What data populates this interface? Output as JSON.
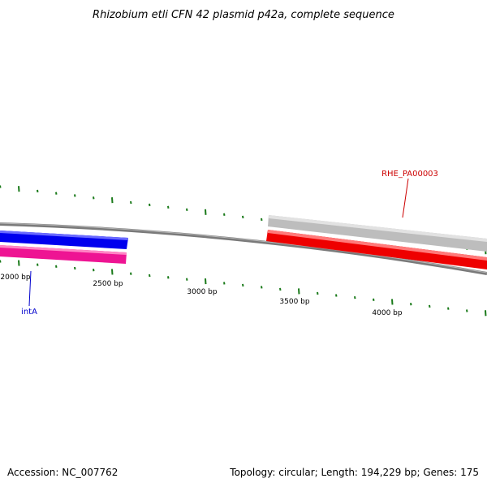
{
  "title": "Rhizobium etli CFN 42 plasmid p42a, complete sequence",
  "footer": {
    "accession": "Accession: NC_007762",
    "summary": "Topology: circular; Length: 194,229 bp; Genes: 175"
  },
  "tick_labels": [
    "2000 bp",
    "2500 bp",
    "3000 bp",
    "3500 bp",
    "4000 bp"
  ],
  "genes": [
    {
      "label": "intA",
      "color": "#0000cc"
    },
    {
      "label": "RHE_PA00003",
      "color": "#cc0000"
    }
  ],
  "colors": {
    "backbone": "#7a7a7a",
    "forward_blue": "#0000ee",
    "reverse_pink": "#ee1493",
    "forward_gray": "#bdbdbd",
    "reverse_red": "#ee0000",
    "tick": "#1a7a1a"
  }
}
